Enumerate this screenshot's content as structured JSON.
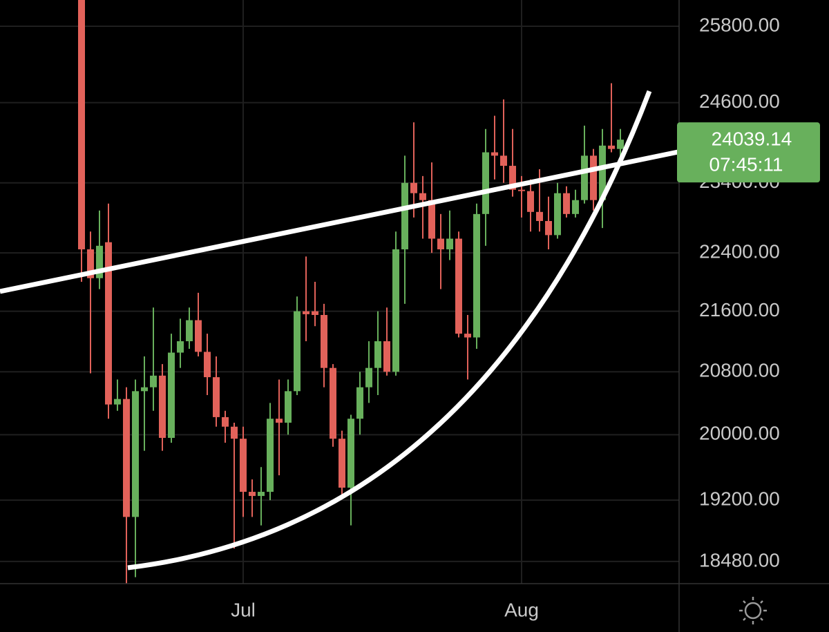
{
  "chart_data": {
    "type": "candlestick",
    "categories": [
      null,
      null,
      null,
      null,
      null,
      null,
      null,
      null,
      null,
      null,
      null,
      null,
      null,
      null,
      null,
      null,
      null,
      null,
      "Jul",
      null,
      null,
      null,
      null,
      null,
      null,
      null,
      null,
      null,
      null,
      null,
      null,
      null,
      null,
      null,
      null,
      null,
      null,
      null,
      null,
      null,
      null,
      null,
      null,
      null,
      null,
      null,
      null,
      null,
      null,
      "Aug",
      null,
      null,
      null,
      null,
      null,
      null,
      null,
      null,
      null,
      null,
      null
    ],
    "open": [
      26600,
      22450,
      22050,
      22550,
      20380,
      20450,
      19000,
      20550,
      20600,
      20750,
      19960,
      21050,
      21200,
      21480,
      21060,
      20730,
      20220,
      20100,
      19950,
      19300,
      19250,
      19300,
      20200,
      20150,
      20550,
      21600,
      21600,
      21550,
      20850,
      19950,
      19350,
      20200,
      20600,
      20850,
      21200,
      20800,
      22450,
      23400,
      23250,
      23150,
      22600,
      22450,
      22600,
      21300,
      21250,
      22950,
      23850,
      23800,
      23650,
      23300,
      23280,
      22980,
      22850,
      22650,
      23250,
      22950,
      23150,
      23800,
      23150,
      23950,
      23900
    ],
    "high": [
      26900,
      22700,
      23000,
      23100,
      20700,
      20600,
      20700,
      21000,
      21650,
      20900,
      21300,
      21500,
      21650,
      21850,
      21300,
      21000,
      20300,
      20150,
      20100,
      19450,
      19600,
      20400,
      20700,
      20700,
      21800,
      22350,
      22000,
      21700,
      20900,
      20050,
      20250,
      20800,
      21200,
      21600,
      21650,
      22700,
      23800,
      24300,
      23500,
      23700,
      22950,
      23000,
      22700,
      21550,
      23100,
      24200,
      24400,
      24650,
      24200,
      23500,
      23450,
      23600,
      23200,
      23400,
      23350,
      23300,
      24250,
      23900,
      24200,
      24900,
      24200
    ],
    "low": [
      22000,
      20780,
      21900,
      20200,
      20300,
      18230,
      18300,
      19800,
      20300,
      19800,
      19900,
      20850,
      21100,
      21000,
      20500,
      20100,
      19900,
      18630,
      19000,
      19000,
      18900,
      19200,
      19500,
      20000,
      20500,
      21200,
      21400,
      20600,
      19850,
      19250,
      18900,
      20000,
      20400,
      20500,
      20750,
      20750,
      21700,
      22900,
      22600,
      22400,
      21900,
      22300,
      21250,
      20700,
      21100,
      22500,
      23450,
      23400,
      23200,
      22900,
      22700,
      22700,
      22450,
      22600,
      22900,
      22900,
      23100,
      23000,
      22750,
      23850,
      23650
    ],
    "close": [
      22450,
      22050,
      22500,
      20380,
      20450,
      19000,
      20550,
      20600,
      20750,
      19960,
      21050,
      21200,
      21480,
      21060,
      20730,
      20220,
      20100,
      19950,
      19300,
      19250,
      19300,
      20200,
      20150,
      20550,
      21600,
      21560,
      21550,
      20850,
      19950,
      19350,
      20200,
      20600,
      20850,
      21200,
      20800,
      22450,
      23400,
      23250,
      23150,
      22600,
      22450,
      22600,
      21300,
      21250,
      22950,
      23850,
      23800,
      23650,
      23300,
      23280,
      22980,
      22850,
      22650,
      23250,
      22950,
      23150,
      23800,
      23150,
      23950,
      23900,
      24039.14
    ],
    "up_color": "#68b05c",
    "down_color": "#e2625a",
    "log_scale": true,
    "grid": true,
    "ylim": [
      18226,
      26226
    ],
    "yticks": [
      {
        "value": 18480,
        "label": "18480.00"
      },
      {
        "value": 19200,
        "label": "19200.00"
      },
      {
        "value": 20000,
        "label": "20000.00"
      },
      {
        "value": 20800,
        "label": "20800.00"
      },
      {
        "value": 21600,
        "label": "21600.00"
      },
      {
        "value": 22400,
        "label": "22400.00"
      },
      {
        "value": 23400,
        "label": "23400.00"
      },
      {
        "value": 24600,
        "label": "24600.00"
      },
      {
        "value": 25800,
        "label": "25800.00"
      }
    ],
    "last_price": 24039.14,
    "countdown": "07:45:11"
  }
}
